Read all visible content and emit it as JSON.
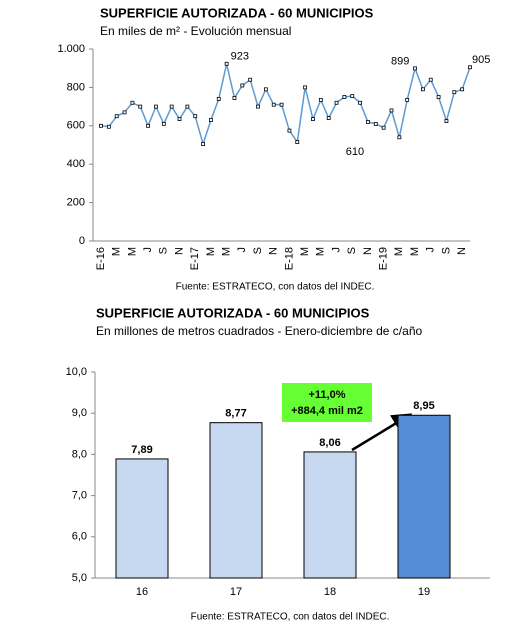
{
  "chart_data": [
    {
      "type": "line",
      "title": "SUPERFICIE AUTORIZADA - 60 MUNICIPIOS",
      "subtitle": "En miles de m² - Evolución mensual",
      "source": "Fuente: ESTRATECO, con datos del INDEC.",
      "categories": [
        "E-16",
        null,
        "M",
        null,
        "M",
        null,
        "J",
        null,
        "S",
        null,
        "N",
        null,
        "E-17",
        null,
        "M",
        null,
        "M",
        null,
        "J",
        null,
        "S",
        null,
        "N",
        null,
        "E-18",
        null,
        "M",
        null,
        "M",
        null,
        "J",
        null,
        "S",
        null,
        "N",
        null,
        "E-19",
        null,
        "M",
        null,
        "M",
        null,
        "J",
        null,
        "S",
        null,
        "N",
        null
      ],
      "values": [
        600,
        595,
        650,
        670,
        720,
        700,
        600,
        700,
        610,
        700,
        635,
        700,
        650,
        505,
        630,
        740,
        923,
        745,
        810,
        840,
        700,
        790,
        710,
        710,
        575,
        515,
        800,
        635,
        735,
        640,
        720,
        750,
        755,
        720,
        620,
        610,
        590,
        680,
        540,
        735,
        899,
        790,
        840,
        750,
        625,
        775,
        790,
        905
      ],
      "value_labels": [
        null,
        null,
        null,
        null,
        null,
        null,
        null,
        null,
        null,
        null,
        null,
        null,
        null,
        null,
        null,
        null,
        "923",
        null,
        null,
        null,
        null,
        null,
        null,
        null,
        null,
        null,
        null,
        null,
        null,
        null,
        null,
        null,
        null,
        null,
        null,
        "610",
        null,
        null,
        null,
        null,
        "899",
        null,
        null,
        null,
        null,
        null,
        null,
        "905"
      ],
      "color": "#5b9bd5",
      "ylim": [
        0,
        1000
      ],
      "yticks": [
        0,
        200,
        400,
        600,
        800,
        {
          "value": 1000,
          "label": "1.000"
        }
      ]
    },
    {
      "type": "bar",
      "title": "SUPERFICIE AUTORIZADA - 60 MUNICIPIOS",
      "subtitle": "En millones de metros cuadrados - Enero-diciembre de c/año",
      "source": "Fuente: ESTRATECO, con datos del INDEC.",
      "categories": [
        "16",
        "17",
        "18",
        "19"
      ],
      "values": [
        7.89,
        8.77,
        8.06,
        8.95
      ],
      "value_labels": [
        "7,89",
        "8,77",
        "8,06",
        "8,95"
      ],
      "colors": [
        "#c6d9f1",
        "#c6d9f1",
        "#c6d9f1",
        "#558ed5"
      ],
      "annotation": [
        "+11,0%",
        "+884,4 mil m2"
      ],
      "ylim": [
        5,
        10
      ],
      "yticks": [
        {
          "value": 5,
          "label": "5,0"
        },
        {
          "value": 6,
          "label": "6,0"
        },
        {
          "value": 7,
          "label": "7,0"
        },
        {
          "value": 8,
          "label": "8,0"
        },
        {
          "value": 9,
          "label": "9,0"
        },
        {
          "value": 10,
          "label": "10,0"
        }
      ]
    }
  ]
}
